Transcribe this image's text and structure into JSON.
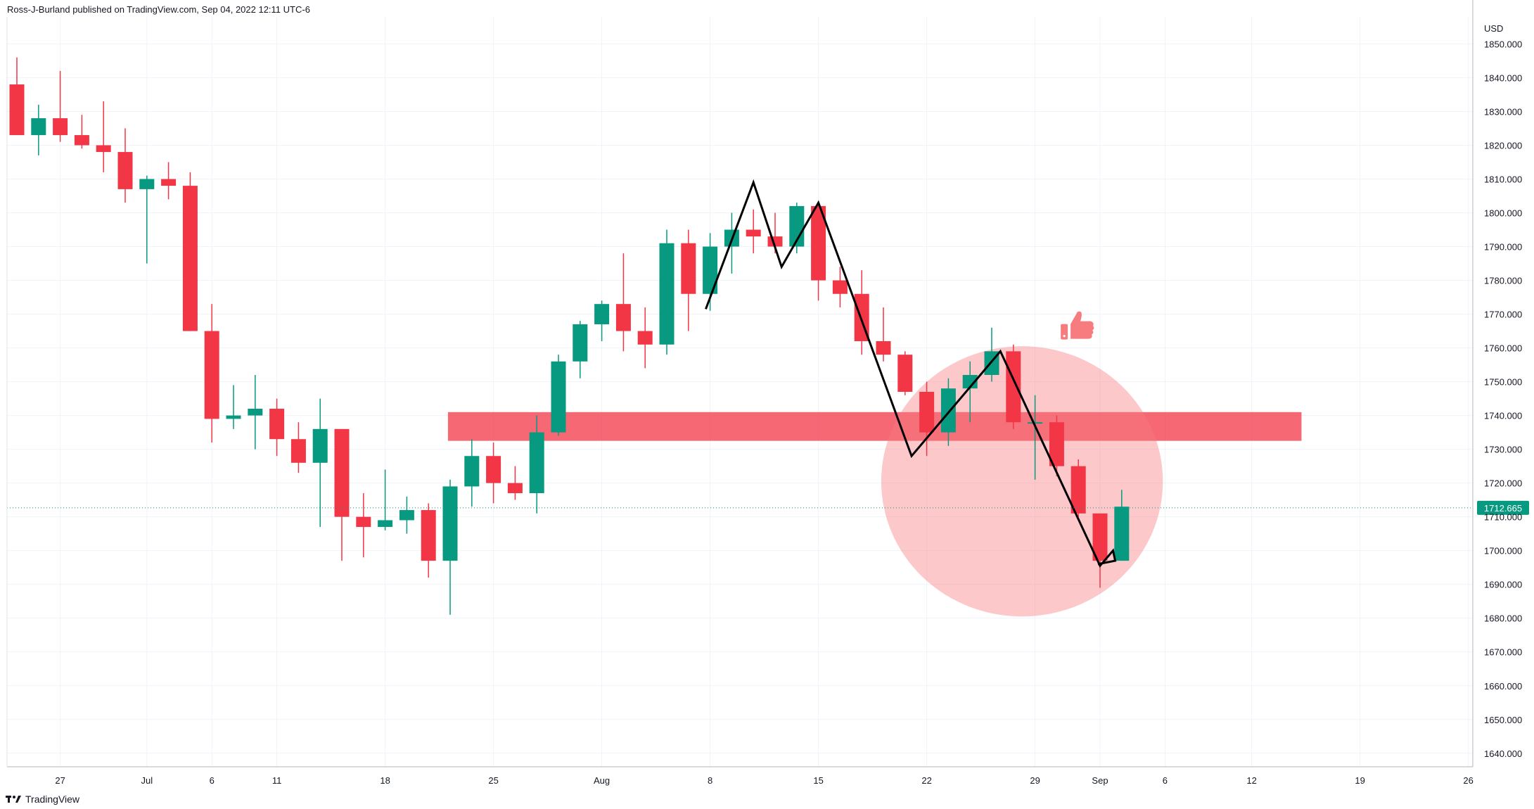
{
  "header": {
    "published_text": "Ross-J-Burland published on TradingView.com, Sep 04, 2022 12:11 UTC-6"
  },
  "footer": {
    "brand": "TradingView",
    "logo_text": "17"
  },
  "colors": {
    "up": "#089981",
    "down": "#f23645",
    "grid": "#f0f3fa",
    "axis_text": "#131722",
    "zone_fill": "#f23645",
    "circle_fill": "#f77c80",
    "drawing_line": "#000000",
    "last_price": "#089981",
    "thumbs_up": "#f77c80"
  },
  "chart_data": {
    "type": "candlestick",
    "currency_label": "USD",
    "ylim": [
      1636,
      1858
    ],
    "y_ticks": [
      1640,
      1650,
      1660,
      1670,
      1680,
      1690,
      1700,
      1710,
      1720,
      1730,
      1740,
      1750,
      1760,
      1770,
      1780,
      1790,
      1800,
      1810,
      1820,
      1830,
      1840,
      1850
    ],
    "y_tick_labels": [
      "1640.000",
      "1650.000",
      "1660.000",
      "1670.000",
      "1680.000",
      "1690.000",
      "1700.000",
      "1710.000",
      "1720.000",
      "1730.000",
      "1740.000",
      "1750.000",
      "1760.000",
      "1770.000",
      "1780.000",
      "1790.000",
      "1800.000",
      "1810.000",
      "1820.000",
      "1830.000",
      "1840.000",
      "1850.000"
    ],
    "x_ticks": [
      {
        "index": 2,
        "label": "27"
      },
      {
        "index": 6,
        "label": "Jul"
      },
      {
        "index": 9,
        "label": "6"
      },
      {
        "index": 12,
        "label": "11"
      },
      {
        "index": 17,
        "label": "18"
      },
      {
        "index": 22,
        "label": "25"
      },
      {
        "index": 27,
        "label": "Aug"
      },
      {
        "index": 32,
        "label": "8"
      },
      {
        "index": 37,
        "label": "15"
      },
      {
        "index": 42,
        "label": "22"
      },
      {
        "index": 47,
        "label": "29"
      },
      {
        "index": 50,
        "label": "Sep"
      },
      {
        "index": 53,
        "label": "6"
      },
      {
        "index": 57,
        "label": "12"
      },
      {
        "index": 62,
        "label": "19"
      },
      {
        "index": 67,
        "label": "26"
      }
    ],
    "candles": [
      {
        "o": 1838,
        "h": 1846,
        "l": 1823,
        "c": 1823
      },
      {
        "o": 1823,
        "h": 1832,
        "l": 1817,
        "c": 1828
      },
      {
        "o": 1828,
        "h": 1842,
        "l": 1821,
        "c": 1823
      },
      {
        "o": 1823,
        "h": 1829,
        "l": 1819,
        "c": 1820
      },
      {
        "o": 1820,
        "h": 1833,
        "l": 1812,
        "c": 1818
      },
      {
        "o": 1818,
        "h": 1825,
        "l": 1803,
        "c": 1807
      },
      {
        "o": 1807,
        "h": 1811,
        "l": 1785,
        "c": 1810
      },
      {
        "o": 1810,
        "h": 1815,
        "l": 1804,
        "c": 1808
      },
      {
        "o": 1808,
        "h": 1812,
        "l": 1765,
        "c": 1765
      },
      {
        "o": 1765,
        "h": 1773,
        "l": 1732,
        "c": 1739
      },
      {
        "o": 1739,
        "h": 1749,
        "l": 1736,
        "c": 1740
      },
      {
        "o": 1740,
        "h": 1752,
        "l": 1730,
        "c": 1742
      },
      {
        "o": 1742,
        "h": 1745,
        "l": 1728,
        "c": 1733
      },
      {
        "o": 1733,
        "h": 1738,
        "l": 1723,
        "c": 1726
      },
      {
        "o": 1726,
        "h": 1745,
        "l": 1707,
        "c": 1736
      },
      {
        "o": 1736,
        "h": 1736,
        "l": 1697,
        "c": 1710
      },
      {
        "o": 1710,
        "h": 1717,
        "l": 1698,
        "c": 1707
      },
      {
        "o": 1707,
        "h": 1724,
        "l": 1706,
        "c": 1709
      },
      {
        "o": 1709,
        "h": 1716,
        "l": 1705,
        "c": 1712
      },
      {
        "o": 1712,
        "h": 1714,
        "l": 1692,
        "c": 1697
      },
      {
        "o": 1697,
        "h": 1721,
        "l": 1681,
        "c": 1719
      },
      {
        "o": 1719,
        "h": 1733,
        "l": 1713,
        "c": 1728
      },
      {
        "o": 1728,
        "h": 1732,
        "l": 1714,
        "c": 1720
      },
      {
        "o": 1720,
        "h": 1725,
        "l": 1715,
        "c": 1717
      },
      {
        "o": 1717,
        "h": 1740,
        "l": 1711,
        "c": 1735
      },
      {
        "o": 1735,
        "h": 1758,
        "l": 1734,
        "c": 1756
      },
      {
        "o": 1756,
        "h": 1768,
        "l": 1751,
        "c": 1767
      },
      {
        "o": 1767,
        "h": 1774,
        "l": 1762,
        "c": 1773
      },
      {
        "o": 1773,
        "h": 1788,
        "l": 1759,
        "c": 1765
      },
      {
        "o": 1765,
        "h": 1772,
        "l": 1754,
        "c": 1761
      },
      {
        "o": 1761,
        "h": 1795,
        "l": 1758,
        "c": 1791
      },
      {
        "o": 1791,
        "h": 1795,
        "l": 1765,
        "c": 1776
      },
      {
        "o": 1776,
        "h": 1794,
        "l": 1771,
        "c": 1790
      },
      {
        "o": 1790,
        "h": 1800,
        "l": 1782,
        "c": 1795
      },
      {
        "o": 1795,
        "h": 1801,
        "l": 1788,
        "c": 1793
      },
      {
        "o": 1793,
        "h": 1800,
        "l": 1788,
        "c": 1790
      },
      {
        "o": 1790,
        "h": 1803,
        "l": 1788,
        "c": 1802
      },
      {
        "o": 1802,
        "h": 1803,
        "l": 1774,
        "c": 1780
      },
      {
        "o": 1780,
        "h": 1784,
        "l": 1772,
        "c": 1776
      },
      {
        "o": 1776,
        "h": 1783,
        "l": 1758,
        "c": 1762
      },
      {
        "o": 1762,
        "h": 1772,
        "l": 1756,
        "c": 1758
      },
      {
        "o": 1758,
        "h": 1759,
        "l": 1746,
        "c": 1747
      },
      {
        "o": 1747,
        "h": 1750,
        "l": 1728,
        "c": 1735
      },
      {
        "o": 1735,
        "h": 1751,
        "l": 1731,
        "c": 1748
      },
      {
        "o": 1748,
        "h": 1756,
        "l": 1738,
        "c": 1752
      },
      {
        "o": 1752,
        "h": 1766,
        "l": 1750,
        "c": 1759
      },
      {
        "o": 1759,
        "h": 1761,
        "l": 1736,
        "c": 1738
      },
      {
        "o": 1738,
        "h": 1746,
        "l": 1721,
        "c": 1738
      },
      {
        "o": 1738,
        "h": 1740,
        "l": 1722,
        "c": 1725
      },
      {
        "o": 1725,
        "h": 1727,
        "l": 1710,
        "c": 1711
      },
      {
        "o": 1711,
        "h": 1711,
        "l": 1689,
        "c": 1697
      },
      {
        "o": 1697,
        "h": 1718,
        "l": 1697,
        "c": 1713
      }
    ],
    "last_price": 1712.665,
    "last_price_label": "1712.665",
    "annotations": {
      "resistance_zone": {
        "i_start": 19.9,
        "i_end": 59.3,
        "y_low": 1732.5,
        "y_high": 1741
      },
      "circle": {
        "i_center": 46.4,
        "y_center": 1720.5,
        "i_radius": 6.5,
        "y_radius": 40
      },
      "thumbs_up": {
        "index": 48.9,
        "price": 1765
      },
      "zigzag_1": [
        [
          31.8,
          1771.5
        ],
        [
          34.0,
          1809
        ],
        [
          35.3,
          1784
        ],
        [
          37.0,
          1803
        ],
        [
          41.3,
          1728
        ],
        [
          45.4,
          1759
        ],
        [
          50.0,
          1695.5
        ],
        [
          50.6,
          1700
        ],
        [
          50.7,
          1697
        ],
        [
          49.9,
          1696
        ]
      ]
    }
  }
}
